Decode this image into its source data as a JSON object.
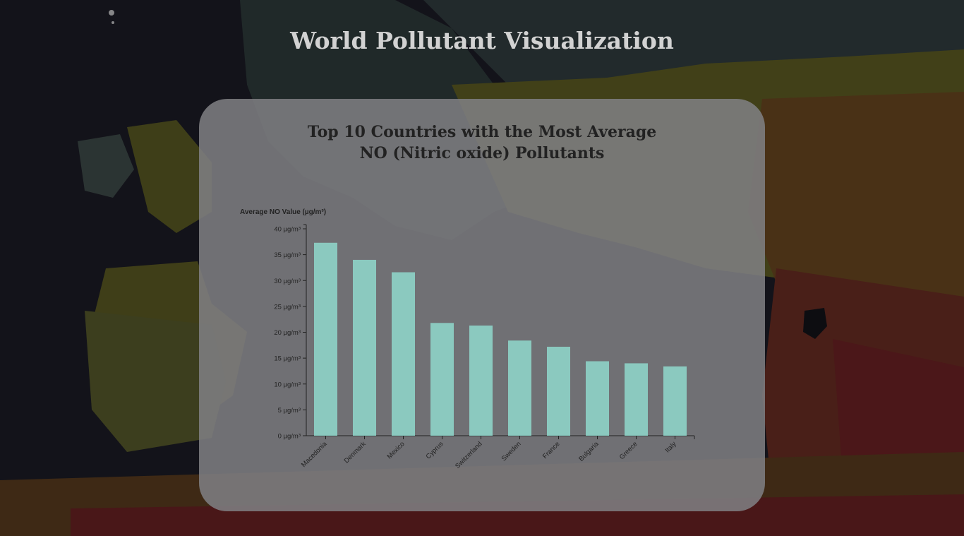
{
  "page": {
    "title": "World Pollutant Visualization"
  },
  "chart_data": {
    "type": "bar",
    "title_lines": [
      "Top 10 Countries with the Most Average",
      "NO (Nitric oxide) Pollutants"
    ],
    "ylabel": "Average NO Value (µg/m³)",
    "xlabel": "",
    "categories": [
      "Macedonia",
      "Denmark",
      "Mexico",
      "Cyprus",
      "Switzerland",
      "Sweden",
      "France",
      "Bulgaria",
      "Greece",
      "Italy"
    ],
    "values": [
      37.3,
      34.0,
      31.6,
      21.8,
      21.3,
      18.4,
      17.2,
      14.4,
      14.0,
      13.4
    ],
    "ylim": [
      0,
      40
    ],
    "yticks": [
      0,
      5,
      10,
      15,
      20,
      25,
      30,
      35,
      40
    ],
    "ytick_unit": "µg/m³",
    "grid": false,
    "legend": "none",
    "colors": {
      "bar": "#8fd8cc",
      "axis": "#222222",
      "card": "#808084"
    }
  }
}
